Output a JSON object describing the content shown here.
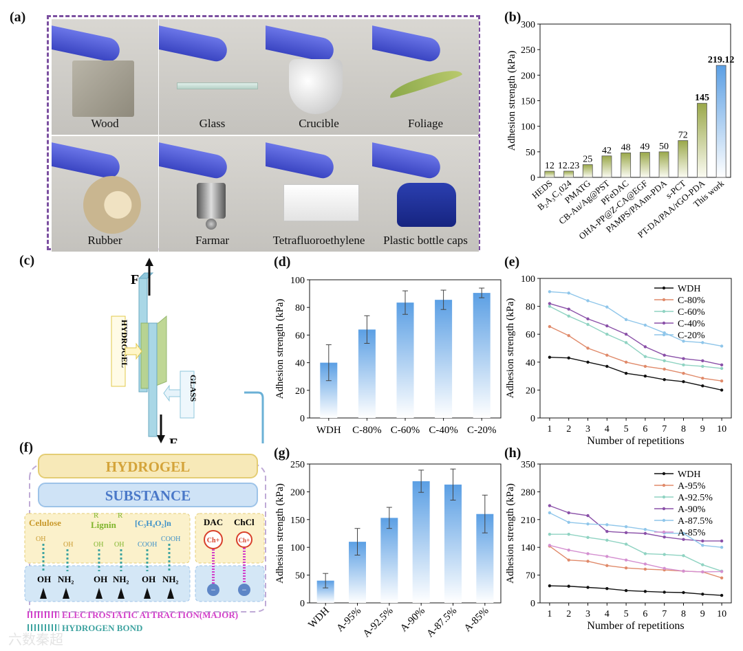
{
  "panels": {
    "a": "(a)",
    "b": "(b)",
    "c": "(c)",
    "d": "(d)",
    "e": "(e)",
    "f": "(f)",
    "g": "(g)",
    "h": "(h)"
  },
  "photos": [
    "Wood",
    "Glass",
    "Crucible",
    "Foliage",
    "Rubber",
    "Farmar",
    "Tetrafluoroethylene",
    "Plastic bottle caps"
  ],
  "diagram_c": {
    "hydrogel": "HYDROGEL",
    "glass": "GLASS",
    "force_top": "F",
    "force_bottom": "F"
  },
  "mechanism_f": {
    "hydrogel": "HYDROGEL",
    "substance": "SUBSTANCE",
    "cellulose": "Celulose",
    "lignin": "Lignin",
    "polymer": "[C₃H₄O₂]n",
    "dac": "DAC",
    "chcl": "ChCl",
    "ch_plus": "Ch+",
    "oh": "OH",
    "nh2": "NH₂",
    "cooh": "COOH",
    "r": "R",
    "minus": "−",
    "legend_electrostatic": "ELECTROSTATIC ATTRACTION(MAJOR)",
    "legend_hbond": "HYDROGEN BOND"
  },
  "watermark": "六数秦超",
  "colors": {
    "bar_top": "#5b9fe4",
    "bar_bottom": "#ffffff",
    "olive": "#9aa84a",
    "frame": "#7b4fa0",
    "hydrogel_box": "#f7e9b8",
    "substance_box": "#cfe3f6",
    "magenta": "#d23fc9"
  },
  "chart_data": [
    {
      "id": "b",
      "type": "bar",
      "ylabel": "Adhesion strength (kPa)",
      "ylim": [
        0,
        300
      ],
      "yticks": [
        "0",
        "50",
        "100",
        "150",
        "200",
        "250",
        "300"
      ],
      "categories": [
        "HEDS",
        "B₂A₃C₁024",
        "PMATG",
        "CB-Au/Ag@PST",
        "PFeDAC",
        "OHA-PP@Z-CA@EGF",
        "PAMPS/PAAm-PDA",
        "s-PCT",
        "PT-DA/PAA/rGO-PDA",
        "This work"
      ],
      "values": [
        12,
        12.23,
        25,
        42,
        48,
        49,
        50,
        72,
        145,
        219.12
      ],
      "value_labels": [
        "12",
        "12.23",
        "25",
        "42",
        "48",
        "49",
        "50",
        "72",
        "145",
        "219.12"
      ]
    },
    {
      "id": "d",
      "type": "bar",
      "ylabel": "Adhesion strength (kPa)",
      "ylim": [
        0,
        100
      ],
      "yticks": [
        "0",
        "20",
        "40",
        "60",
        "80",
        "100"
      ],
      "categories": [
        "WDH",
        "C-80%",
        "C-60%",
        "C-40%",
        "C-20%"
      ],
      "values": [
        40,
        64,
        83.5,
        85.5,
        90.5
      ],
      "errors": [
        13,
        10,
        8.5,
        7,
        3.5
      ]
    },
    {
      "id": "e",
      "type": "line",
      "xlabel": "Number of repetitions",
      "ylabel": "Adhesion strength (kPa)",
      "ylim": [
        0,
        100
      ],
      "yticks": [
        "0",
        "20",
        "40",
        "60",
        "80",
        "100"
      ],
      "x": [
        1,
        2,
        3,
        4,
        5,
        6,
        7,
        8,
        9,
        10
      ],
      "legend": "top-right",
      "series": [
        {
          "name": "WDH",
          "color": "#111111",
          "values": [
            43.5,
            43,
            40,
            37,
            32,
            30,
            27.5,
            26,
            23,
            20
          ]
        },
        {
          "name": "C-80%",
          "color": "#e08a6a",
          "values": [
            65.5,
            59,
            50,
            45,
            40,
            37,
            35,
            32,
            28.5,
            26.5
          ]
        },
        {
          "name": "C-60%",
          "color": "#8fd3c2",
          "values": [
            80,
            73,
            67,
            60,
            54,
            44,
            41,
            38,
            37,
            35.5
          ]
        },
        {
          "name": "C-40%",
          "color": "#8a50a8",
          "values": [
            82,
            78,
            71,
            66,
            60,
            51,
            45,
            42.5,
            41,
            38
          ]
        },
        {
          "name": "C-20%",
          "color": "#8fc6ea",
          "values": [
            90.5,
            89.5,
            84,
            79.5,
            70.5,
            66.5,
            61,
            55,
            54,
            51.5
          ]
        }
      ]
    },
    {
      "id": "g",
      "type": "bar",
      "ylabel": "Adhesion strength (kPa)",
      "ylim": [
        0,
        250
      ],
      "yticks": [
        "0",
        "50",
        "100",
        "150",
        "200",
        "250"
      ],
      "categories": [
        "WDH",
        "A-95%",
        "A-92.5%",
        "A-90%",
        "A-87.5%",
        "A-85%"
      ],
      "values": [
        40,
        110,
        153,
        219,
        213,
        160
      ],
      "errors": [
        13,
        24,
        19,
        20,
        28,
        34
      ]
    },
    {
      "id": "h",
      "type": "line",
      "xlabel": "Number of repetitions",
      "ylabel": "Adhesion strength (kPa)",
      "ylim": [
        0,
        350
      ],
      "yticks": [
        "0",
        "70",
        "140",
        "210",
        "280",
        "350"
      ],
      "x": [
        1,
        2,
        3,
        4,
        5,
        6,
        7,
        8,
        9,
        10
      ],
      "legend": "top-right",
      "series": [
        {
          "name": "WDH",
          "color": "#111111",
          "values": [
            43,
            42,
            39,
            36,
            31,
            29,
            27,
            26,
            22,
            19
          ]
        },
        {
          "name": "A-95%",
          "color": "#e08a6a",
          "values": [
            143,
            108,
            105,
            94,
            88,
            85,
            83,
            80,
            78,
            63
          ]
        },
        {
          "name": "A-92.5%",
          "color": "#8fd3c2",
          "values": [
            173,
            173,
            165,
            158,
            148,
            124,
            122,
            119,
            96,
            80
          ]
        },
        {
          "name": "A-90%",
          "color": "#8a50a8",
          "values": [
            245,
            227,
            220,
            180,
            177,
            175,
            166,
            160,
            156,
            156
          ]
        },
        {
          "name": "A-87.5%",
          "color": "#8fc6ea",
          "values": [
            227,
            203,
            199,
            197,
            192,
            185,
            176,
            175,
            145,
            140
          ]
        },
        {
          "name": "A-85%",
          "color": "#d48fd0",
          "values": [
            145,
            133,
            124,
            117,
            108,
            98,
            87,
            80,
            78,
            79
          ]
        }
      ]
    }
  ]
}
